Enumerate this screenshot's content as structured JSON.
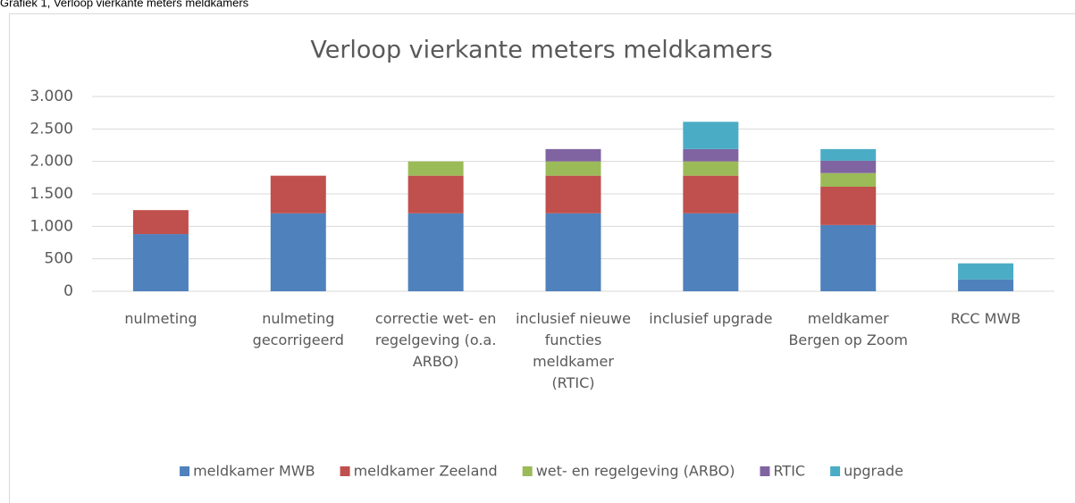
{
  "caption": "Grafiek 1, Verloop vierkante meters meldkamers",
  "chart_data": {
    "type": "stacked_bar",
    "title": "Verloop vierkante meters meldkamers",
    "categories": [
      "nulmeting",
      "nulmeting gecorrigeerd",
      "correctie wet- en regelgeving (o.a. ARBO)",
      "inclusief nieuwe functies meldkamer (RTIC)",
      "inclusief upgrade",
      "meldkamer Bergen op Zoom",
      "RCC MWB"
    ],
    "series": [
      {
        "name": "meldkamer MWB",
        "color": "#4f81bd",
        "values": [
          880,
          1200,
          1200,
          1200,
          1200,
          1020,
          180
        ]
      },
      {
        "name": "meldkamer Zeeland",
        "color": "#c0504d",
        "values": [
          370,
          580,
          580,
          580,
          580,
          590,
          null
        ]
      },
      {
        "name": "wet- en regelgeving (ARBO)",
        "color": "#9bbb59",
        "values": [
          null,
          null,
          220,
          220,
          220,
          210,
          null
        ]
      },
      {
        "name": "RTIC",
        "color": "#8064a2",
        "values": [
          null,
          null,
          null,
          190,
          190,
          190,
          null
        ]
      },
      {
        "name": "upgrade",
        "color": "#4bacc6",
        "values": [
          null,
          null,
          null,
          null,
          420,
          180,
          250
        ]
      }
    ],
    "ylim": [
      0,
      3000
    ],
    "yticks": [
      0,
      500,
      {
        "value": 1000,
        "label": "1.000"
      },
      {
        "value": 1500,
        "label": "1.500"
      },
      {
        "value": 2000,
        "label": "2.000"
      },
      {
        "value": 2500,
        "label": "2.500"
      },
      {
        "value": 3000,
        "label": "3.000"
      }
    ],
    "grid": true,
    "legend": "bottom"
  }
}
